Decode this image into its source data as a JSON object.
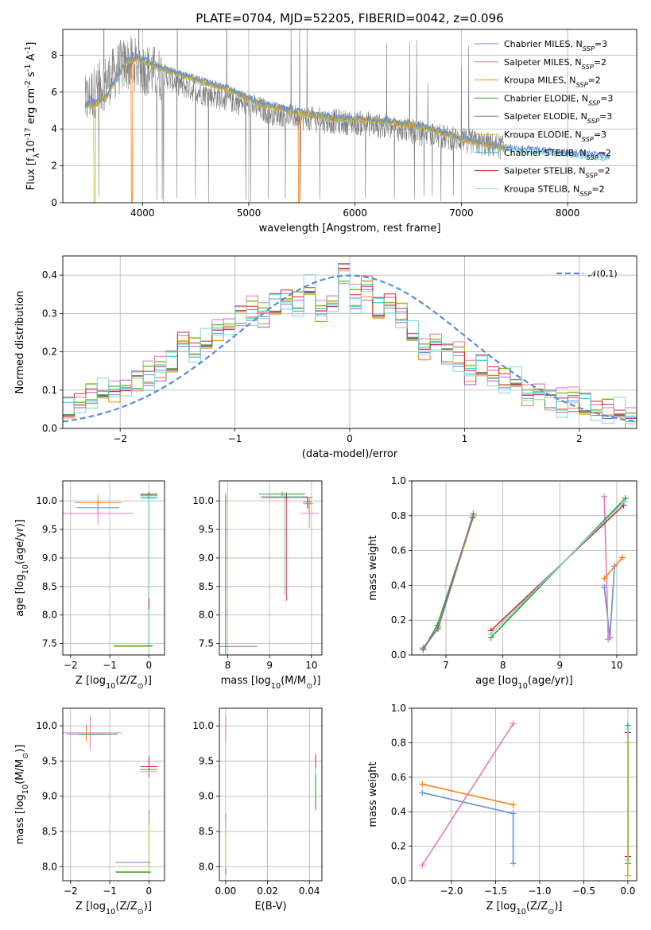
{
  "figure": {
    "title": "PLATE=0704, MJD=52205, FIBERID=0042, z=0.096"
  },
  "colors": {
    "grid": "#b0b0b0",
    "spectrum": "#808080",
    "gauss": "#5b8bd9",
    "models": [
      "#6a8fd8",
      "#e377c2",
      "#ff7f0e",
      "#2ca02c",
      "#9467bd",
      "#bcbd22",
      "#17becf",
      "#d62728",
      "#7fd6d6"
    ]
  },
  "chart_data": [
    {
      "id": "spectrum",
      "type": "line",
      "title": "PLATE=0704, MJD=52205, FIBERID=0042, z=0.096",
      "xlabel": "wavelength [Angstrom, rest frame]",
      "ylabel": "Flux [f$_\\lambda$10$^{-17}$ erg cm$^{-2}$ s$^{-1}$ A$^{-1}$]",
      "xlim": [
        3250,
        8650
      ],
      "ylim": [
        0,
        9.4
      ],
      "xticks": [
        4000,
        5000,
        6000,
        7000,
        8000
      ],
      "yticks": [
        0,
        2,
        4,
        6,
        8
      ],
      "legend_position": "top-right",
      "legend": [
        {
          "text": "Chabrier MILES, N",
          "sub": "SSP",
          "tail": "=3"
        },
        {
          "text": "Salpeter MILES, N",
          "sub": "SSP",
          "tail": "=2"
        },
        {
          "text": "Kroupa MILES, N",
          "sub": "SSP",
          "tail": "=2"
        },
        {
          "text": "Chabrier ELODIE, N",
          "sub": "SSP",
          "tail": "=3"
        },
        {
          "text": "Salpeter ELODIE, N",
          "sub": "SSP",
          "tail": "=3"
        },
        {
          "text": "Kroupa ELODIE, N",
          "sub": "SSP",
          "tail": "=3"
        },
        {
          "text": "Chabrier STELIB, N",
          "sub": "SSP",
          "tail": "=2"
        },
        {
          "text": "Salpeter STELIB, N",
          "sub": "SSP",
          "tail": "=2"
        },
        {
          "text": "Kroupa STELIB, N",
          "sub": "SSP",
          "tail": "=2"
        }
      ],
      "observed_spectrum": {
        "x": [
          3460,
          3520,
          3600,
          3700,
          3800,
          3900,
          4000,
          4100,
          4200,
          4400,
          4600,
          4800,
          5000,
          5200,
          5500,
          5800,
          6100,
          6400,
          6700,
          7000,
          7200,
          7400
        ],
        "y": [
          5.4,
          5.9,
          6.3,
          6.8,
          7.4,
          7.6,
          7.3,
          7.1,
          6.9,
          6.3,
          5.9,
          5.6,
          5.3,
          4.9,
          4.6,
          4.4,
          4.3,
          4.0,
          3.7,
          3.4,
          3.2,
          3.0
        ]
      },
      "model_continuum": {
        "x": [
          3460,
          3550,
          3650,
          3750,
          3850,
          3950,
          4100,
          4300,
          4500,
          4800,
          5100,
          5400,
          5800,
          6200,
          6600,
          7000,
          7400,
          7800,
          8200,
          8400
        ],
        "y": [
          5.2,
          5.3,
          5.6,
          6.6,
          7.6,
          7.8,
          7.4,
          7.0,
          6.6,
          6.1,
          5.3,
          4.9,
          4.5,
          4.4,
          4.1,
          3.4,
          2.9,
          2.7,
          2.5,
          2.4
        ]
      }
    },
    {
      "id": "residuals",
      "type": "line",
      "xlabel": "(data-model)/error",
      "ylabel": "Normed distribution",
      "xlim": [
        -2.5,
        2.5
      ],
      "ylim": [
        0,
        0.45
      ],
      "xticks": [
        -2,
        -1,
        0,
        1,
        2
      ],
      "yticks": [
        0.0,
        0.1,
        0.2,
        0.3,
        0.4
      ],
      "legend_position": "top-right",
      "legend": [
        "$\\mathcal{N}(0,1)$"
      ],
      "gaussian": {
        "mean": 0,
        "sigma": 1
      },
      "bin_width": 0.1,
      "hist_x": [
        -2.45,
        -2.35,
        -2.25,
        -2.15,
        -2.05,
        -1.95,
        -1.85,
        -1.75,
        -1.65,
        -1.55,
        -1.45,
        -1.35,
        -1.25,
        -1.15,
        -1.05,
        -0.95,
        -0.85,
        -0.75,
        -0.65,
        -0.55,
        -0.45,
        -0.35,
        -0.25,
        -0.15,
        -0.05,
        0.05,
        0.15,
        0.25,
        0.35,
        0.45,
        0.55,
        0.65,
        0.75,
        0.85,
        0.95,
        1.05,
        1.15,
        1.25,
        1.35,
        1.45,
        1.55,
        1.65,
        1.75,
        1.85,
        1.95,
        2.05,
        2.15,
        2.25,
        2.35,
        2.45
      ],
      "hist_y": [
        0.05,
        0.07,
        0.09,
        0.09,
        0.1,
        0.11,
        0.13,
        0.14,
        0.16,
        0.17,
        0.23,
        0.21,
        0.22,
        0.26,
        0.27,
        0.3,
        0.31,
        0.3,
        0.32,
        0.34,
        0.33,
        0.36,
        0.31,
        0.33,
        0.41,
        0.34,
        0.37,
        0.31,
        0.33,
        0.3,
        0.24,
        0.21,
        0.23,
        0.2,
        0.19,
        0.15,
        0.16,
        0.14,
        0.13,
        0.12,
        0.09,
        0.1,
        0.08,
        0.07,
        0.08,
        0.06,
        0.05,
        0.05,
        0.04,
        0.03
      ],
      "offsets": [
        0.0,
        -0.02,
        0.015,
        -0.01,
        0.02,
        -0.015,
        0.01,
        -0.005,
        0.025
      ]
    },
    {
      "id": "age-vs-Z",
      "type": "scatter",
      "xlabel": "Z [log$_{10}$($Z/Z_\\odot$)]",
      "ylabel": "age  [log$_{10}$($age/yr$)]",
      "xlim": [
        -2.2,
        0.4
      ],
      "ylim": [
        7.3,
        10.35
      ],
      "xticks": [
        -2,
        -1,
        0
      ],
      "yticks": [
        7.5,
        8.0,
        8.5,
        9.0,
        9.5,
        10.0
      ],
      "points": [
        {
          "x": -1.3,
          "y": 9.88,
          "xerr": 0.55,
          "yerr": 0.12,
          "c": 0
        },
        {
          "x": -1.3,
          "y": 9.97,
          "xerr": 0.6,
          "yerr": 0.15,
          "c": 2
        },
        {
          "x": -1.3,
          "y": 9.78,
          "xerr": 0.9,
          "yerr": 0.2,
          "c": 1
        },
        {
          "x": 0.0,
          "y": 10.12,
          "xerr": 0.22,
          "yerr": 0.04,
          "c": 3
        },
        {
          "x": 0.0,
          "y": 10.1,
          "xerr": 0.22,
          "yerr": 0.04,
          "c": 7
        },
        {
          "x": 0.0,
          "y": 10.07,
          "xerr": 0.22,
          "yerr": 0.04,
          "c": 8
        },
        {
          "x": 0.0,
          "y": 10.05,
          "xerr": 0.22,
          "yerr": 0.04,
          "c": 6
        },
        {
          "x": 0.0,
          "y": 8.8,
          "xerr": 0.0,
          "yerr": 1.35,
          "c": 3
        },
        {
          "x": 0.0,
          "y": 8.5,
          "xerr": 0.0,
          "yerr": 1.55,
          "c": 8
        },
        {
          "x": 0.0,
          "y": 8.2,
          "xerr": 0.0,
          "yerr": 0.1,
          "c": 7
        },
        {
          "x": -0.4,
          "y": 7.45,
          "xerr": 0.5,
          "yerr": 0.0,
          "c": 5
        },
        {
          "x": -0.4,
          "y": 7.46,
          "xerr": 0.5,
          "yerr": 0.0,
          "c": 3
        }
      ]
    },
    {
      "id": "age-vs-mass",
      "type": "scatter",
      "xlabel": "mass [log$_{10}$($M/M_\\odot$)]",
      "ylabel": "",
      "xlim": [
        7.8,
        10.25
      ],
      "ylim": [
        7.3,
        10.35
      ],
      "xticks": [
        8,
        9,
        10
      ],
      "yticks": [
        7.5,
        8.0,
        8.5,
        9.0,
        9.5,
        10.0
      ],
      "points": [
        {
          "x": 7.95,
          "y": 8.8,
          "xerr": 0.0,
          "yerr": 1.35,
          "c": 5
        },
        {
          "x": 7.95,
          "y": 8.7,
          "xerr": 0.0,
          "yerr": 1.4,
          "c": 3
        },
        {
          "x": 8.1,
          "y": 7.45,
          "xerr": 0.6,
          "yerr": 0.0,
          "c": 4
        },
        {
          "x": 9.3,
          "y": 10.12,
          "xerr": 0.55,
          "yerr": 0.04,
          "c": 3
        },
        {
          "x": 9.35,
          "y": 10.08,
          "xerr": 0.55,
          "yerr": 0.04,
          "c": 8
        },
        {
          "x": 9.4,
          "y": 10.06,
          "xerr": 0.6,
          "yerr": 0.04,
          "c": 7
        },
        {
          "x": 9.4,
          "y": 9.2,
          "xerr": 0.0,
          "yerr": 0.95,
          "c": 7
        },
        {
          "x": 9.35,
          "y": 9.25,
          "xerr": 0.0,
          "yerr": 0.9,
          "c": 8
        },
        {
          "x": 9.92,
          "y": 9.95,
          "xerr": 0.12,
          "yerr": 0.1,
          "c": 2
        },
        {
          "x": 9.95,
          "y": 9.78,
          "xerr": 0.22,
          "yerr": 0.25,
          "c": 1
        },
        {
          "x": 9.9,
          "y": 9.98,
          "xerr": 0.1,
          "yerr": 0.1,
          "c": 0
        }
      ]
    },
    {
      "id": "mass-weight-vs-age",
      "type": "line",
      "xlabel": "age  [log$_{10}$($age/yr$)]",
      "ylabel": "mass weight",
      "xlim": [
        6.4,
        10.35
      ],
      "ylim": [
        0.0,
        1.0
      ],
      "xticks": [
        7,
        8,
        9,
        10
      ],
      "yticks": [
        0.0,
        0.2,
        0.4,
        0.6,
        0.8,
        1.0
      ],
      "series": [
        {
          "c": 0,
          "x": [
            9.78,
            9.88,
            9.96
          ],
          "y": [
            0.39,
            0.1,
            0.51
          ]
        },
        {
          "c": 1,
          "x": [
            9.78,
            9.85
          ],
          "y": [
            0.91,
            0.09
          ]
        },
        {
          "c": 2,
          "x": [
            9.78,
            10.1
          ],
          "y": [
            0.44,
            0.56
          ]
        },
        {
          "c": 3,
          "x": [
            7.79,
            10.15
          ],
          "y": [
            0.1,
            0.9
          ]
        },
        {
          "c": 7,
          "x": [
            7.79,
            10.12
          ],
          "y": [
            0.14,
            0.86
          ]
        },
        {
          "c": 8,
          "x": [
            7.79,
            10.13
          ],
          "y": [
            0.12,
            0.88
          ]
        },
        {
          "c": 5,
          "x": [
            6.6,
            6.87,
            7.49
          ],
          "y": [
            0.03,
            0.16,
            0.8
          ]
        },
        {
          "c": 3,
          "x": [
            6.6,
            6.85,
            7.47
          ],
          "y": [
            0.03,
            0.17,
            0.79
          ]
        },
        {
          "c": 4,
          "x": [
            6.6,
            6.86,
            7.48
          ],
          "y": [
            0.04,
            0.15,
            0.81
          ]
        }
      ]
    },
    {
      "id": "mass-vs-Z",
      "type": "scatter",
      "xlabel": "Z [log$_{10}$($Z/Z_\\odot$)]",
      "ylabel": "mass [log$_{10}$($M/M_\\odot$)]",
      "xlim": [
        -2.2,
        0.4
      ],
      "ylim": [
        7.8,
        10.25
      ],
      "xticks": [
        -2,
        -1,
        0
      ],
      "yticks": [
        8.0,
        8.5,
        9.0,
        9.5,
        10.0
      ],
      "points": [
        {
          "x": -1.6,
          "y": 9.88,
          "xerr": 0.5,
          "yerr": 0.1,
          "c": 0
        },
        {
          "x": -1.6,
          "y": 9.9,
          "xerr": 0.6,
          "yerr": 0.12,
          "c": 2
        },
        {
          "x": -1.5,
          "y": 9.9,
          "xerr": 0.8,
          "yerr": 0.25,
          "c": 1
        },
        {
          "x": -1.3,
          "y": 9.88,
          "xerr": 0.5,
          "yerr": 0.0,
          "c": 3
        },
        {
          "x": 0.0,
          "y": 9.42,
          "xerr": 0.22,
          "yerr": 0.15,
          "c": 7
        },
        {
          "x": 0.0,
          "y": 9.38,
          "xerr": 0.22,
          "yerr": 0.0,
          "c": 3
        },
        {
          "x": 0.0,
          "y": 9.35,
          "xerr": 0.22,
          "yerr": 0.0,
          "c": 8
        },
        {
          "x": 0.0,
          "y": 8.7,
          "xerr": 0.0,
          "yerr": 0.1,
          "c": 4
        },
        {
          "x": 0.0,
          "y": 8.3,
          "xerr": 0.0,
          "yerr": 0.35,
          "c": 5
        },
        {
          "x": -0.4,
          "y": 8.06,
          "xerr": 0.45,
          "yerr": 0.0,
          "c": 4
        },
        {
          "x": -0.4,
          "y": 7.93,
          "xerr": 0.45,
          "yerr": 0.0,
          "c": 5
        },
        {
          "x": -0.4,
          "y": 7.92,
          "xerr": 0.45,
          "yerr": 0.0,
          "c": 3
        }
      ]
    },
    {
      "id": "mass-vs-ebv",
      "type": "scatter",
      "xlabel": "E(B-V)",
      "ylabel": "",
      "xlim": [
        -0.003,
        0.046
      ],
      "ylim": [
        7.8,
        10.25
      ],
      "xticks": [
        0.0,
        0.02,
        0.04
      ],
      "yticks": [
        8.0,
        8.5,
        9.0,
        9.5,
        10.0
      ],
      "points": [
        {
          "x": 0.0,
          "y": 9.95,
          "xerr": 0.0,
          "yerr": 0.18,
          "c": 2
        },
        {
          "x": 0.0,
          "y": 10.0,
          "xerr": 0.0,
          "yerr": 0.15,
          "c": 1
        },
        {
          "x": 0.0,
          "y": 8.65,
          "xerr": 0.0,
          "yerr": 0.1,
          "c": 4
        },
        {
          "x": 0.0,
          "y": 8.3,
          "xerr": 0.0,
          "yerr": 0.35,
          "c": 5
        },
        {
          "x": 0.0,
          "y": 7.93,
          "xerr": 0.0,
          "yerr": 0.05,
          "c": 3
        },
        {
          "x": 0.043,
          "y": 9.45,
          "xerr": 0.0,
          "yerr": 0.15,
          "c": 7
        },
        {
          "x": 0.043,
          "y": 9.1,
          "xerr": 0.0,
          "yerr": 0.3,
          "c": 8
        },
        {
          "x": 0.043,
          "y": 9.05,
          "xerr": 0.0,
          "yerr": 0.25,
          "c": 3
        }
      ]
    },
    {
      "id": "mass-weight-vs-Z",
      "type": "line",
      "xlabel": "Z [log$_{10}$($Z/Z_\\odot$)]",
      "ylabel": "mass weight",
      "xlim": [
        -2.45,
        0.1
      ],
      "ylim": [
        0.0,
        1.0
      ],
      "xticks": [
        -2.0,
        -1.5,
        -1.0,
        -0.5,
        0.0
      ],
      "yticks": [
        0.0,
        0.2,
        0.4,
        0.6,
        0.8,
        1.0
      ],
      "series": [
        {
          "c": 0,
          "x": [
            -1.3,
            -1.3,
            -2.33
          ],
          "y": [
            0.1,
            0.39,
            0.51
          ]
        },
        {
          "c": 2,
          "x": [
            -1.3,
            -2.33
          ],
          "y": [
            0.44,
            0.56
          ]
        },
        {
          "c": 1,
          "x": [
            -2.33,
            -1.3
          ],
          "y": [
            0.09,
            0.91
          ]
        },
        {
          "c": 3,
          "x": [
            0.0,
            0.0
          ],
          "y": [
            0.1,
            0.9
          ]
        },
        {
          "c": 7,
          "x": [
            0.0,
            0.0
          ],
          "y": [
            0.14,
            0.86
          ]
        },
        {
          "c": 8,
          "x": [
            0.0,
            0.0
          ],
          "y": [
            0.12,
            0.88
          ]
        },
        {
          "c": 5,
          "x": [
            0.0,
            0.0
          ],
          "y": [
            0.03,
            0.8
          ]
        }
      ]
    }
  ]
}
